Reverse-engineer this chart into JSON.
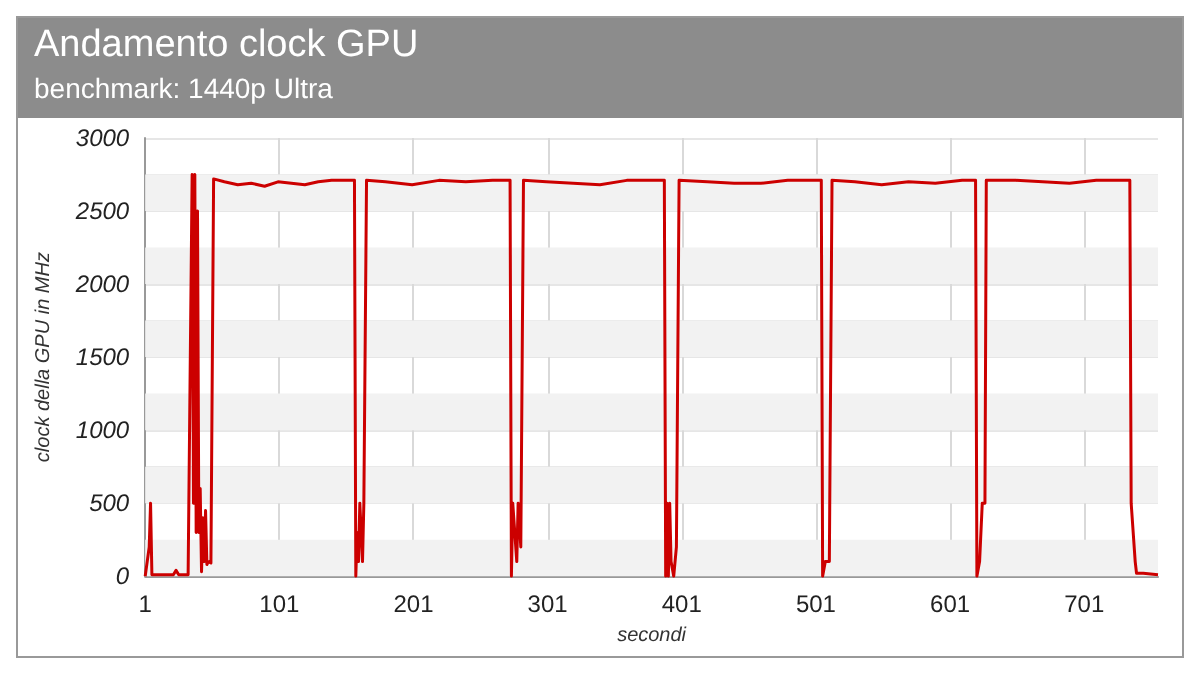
{
  "chart_data": {
    "type": "line",
    "title": "Andamento clock GPU",
    "subtitle": "benchmark: 1440p Ultra",
    "xlabel": "secondi",
    "ylabel": "clock della GPU in MHz",
    "x": [
      1,
      4,
      5,
      6,
      22,
      24,
      26,
      33,
      36,
      37,
      38,
      39,
      40,
      41,
      42,
      43,
      44,
      45,
      46,
      47,
      48,
      50,
      52,
      60,
      70,
      80,
      90,
      100,
      110,
      120,
      130,
      140,
      150,
      157,
      158,
      159,
      160,
      161,
      162,
      163,
      164,
      166,
      180,
      200,
      220,
      240,
      260,
      273,
      274,
      275,
      276,
      278,
      279,
      281,
      283,
      300,
      320,
      340,
      360,
      380,
      388,
      389,
      390,
      391,
      392,
      393,
      395,
      397,
      399,
      420,
      440,
      460,
      480,
      505,
      506,
      508,
      511,
      513,
      530,
      550,
      570,
      590,
      610,
      620,
      621,
      623,
      625,
      627,
      628,
      650,
      670,
      690,
      710,
      735,
      736,
      737,
      739,
      740,
      745,
      756
    ],
    "series": [
      {
        "color": "#cc0000",
        "values": [
          0,
          200,
          500,
          10,
          10,
          40,
          10,
          10,
          2750,
          500,
          2750,
          300,
          2500,
          300,
          600,
          30,
          400,
          100,
          450,
          80,
          100,
          90,
          2720,
          2700,
          2680,
          2690,
          2670,
          2700,
          2690,
          2680,
          2700,
          2710,
          2710,
          2710,
          0,
          300,
          100,
          500,
          500,
          100,
          500,
          2710,
          2700,
          2680,
          2710,
          2700,
          2710,
          2710,
          0,
          500,
          500,
          100,
          500,
          200,
          2710,
          2700,
          2690,
          2680,
          2710,
          2710,
          2710,
          0,
          500,
          0,
          500,
          100,
          0,
          200,
          2710,
          2700,
          2690,
          2690,
          2710,
          2710,
          0,
          100,
          100,
          2710,
          2700,
          2680,
          2700,
          2690,
          2710,
          2710,
          0,
          100,
          500,
          500,
          2710,
          2710,
          2700,
          2690,
          2710,
          2710,
          500,
          500,
          100,
          20,
          20,
          10
        ]
      }
    ],
    "xlim": [
      1,
      756
    ],
    "xticks": [
      1,
      101,
      201,
      301,
      401,
      501,
      601,
      701
    ],
    "ylim": [
      0,
      3000
    ],
    "yticks": [
      0,
      500,
      1000,
      1500,
      2000,
      2500,
      3000
    ],
    "bands": [
      {
        "axis": "y",
        "from": 0,
        "to": 250,
        "color": "#f2f2f2"
      },
      {
        "axis": "y",
        "from": 500,
        "to": 750,
        "color": "#f2f2f2"
      },
      {
        "axis": "y",
        "from": 1000,
        "to": 1250,
        "color": "#f2f2f2"
      },
      {
        "axis": "y",
        "from": 1500,
        "to": 1750,
        "color": "#f2f2f2"
      },
      {
        "axis": "y",
        "from": 2000,
        "to": 2250,
        "color": "#f2f2f2"
      },
      {
        "axis": "y",
        "from": 2500,
        "to": 2750,
        "color": "#f2f2f2"
      }
    ],
    "grid": true,
    "marker": "none",
    "line_style": "solid"
  }
}
